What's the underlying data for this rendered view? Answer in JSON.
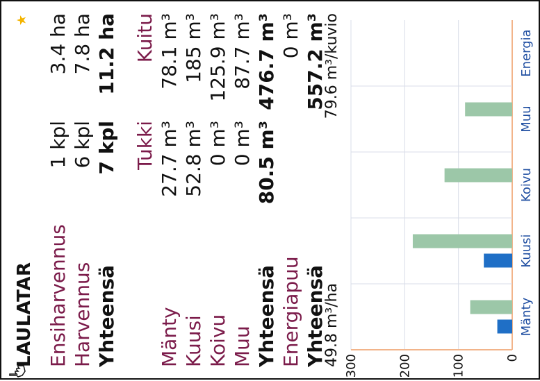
{
  "panel": {
    "title": "LAULATAR",
    "rows": {
      "ensiharvennus": {
        "label": "Ensiharvennus",
        "c1": "1 kpl",
        "c2": "3.4 ha"
      },
      "harvennus": {
        "label": "Harvennus",
        "c1": "6 kpl",
        "c2": "7.8 ha"
      },
      "yhteensa1": {
        "label": "Yhteensä",
        "c1": "7 kpl",
        "c2": "11.2 ha"
      },
      "header": {
        "c1": "Tukki",
        "c2": "Kuitu"
      },
      "manty": {
        "label": "Mänty",
        "c1": "27.7 m³",
        "c2": "78.1 m³"
      },
      "kuusi": {
        "label": "Kuusi",
        "c1": "52.8 m³",
        "c2": "185 m³"
      },
      "koivu": {
        "label": "Koivu",
        "c1": "0 m³",
        "c2": "125.9 m³"
      },
      "muu": {
        "label": "Muu",
        "c1": "0 m³",
        "c2": "87.7 m³"
      },
      "yhteensa2": {
        "label": "Yhteensä",
        "c1": "80.5 m³",
        "c2": "476.7 m³"
      },
      "energiapuu": {
        "label": "Energiapuu",
        "c1": "",
        "c2": "0 m³"
      },
      "yhteensa3": {
        "label": "Yhteensä",
        "c1": "",
        "c2": "557.2 m³"
      },
      "density": {
        "label": "49.8 m³/ha",
        "c1": "",
        "c2": "79.6 m³/kuvio"
      }
    }
  },
  "icons": {
    "favorite": "star-icon",
    "pointer": "hand-cursor-icon"
  },
  "colors": {
    "accent_label": "#7b1b4a",
    "tukki": "#1f6fc6",
    "kuitu": "#9cc7a8",
    "axis": "#f2b48a",
    "grid": "#d9dde8"
  },
  "chart_data": {
    "type": "bar",
    "categories": [
      "Mänty",
      "Kuusi",
      "Koivu",
      "Muu",
      "Energia"
    ],
    "series": [
      {
        "values": [
          27.7,
          52.8,
          0,
          0,
          0
        ]
      },
      {
        "values": [
          78.1,
          185,
          125.9,
          87.7,
          0
        ]
      }
    ],
    "ylim": [
      0,
      300
    ],
    "yticks": [
      0,
      100,
      200,
      300
    ],
    "grid": true
  }
}
